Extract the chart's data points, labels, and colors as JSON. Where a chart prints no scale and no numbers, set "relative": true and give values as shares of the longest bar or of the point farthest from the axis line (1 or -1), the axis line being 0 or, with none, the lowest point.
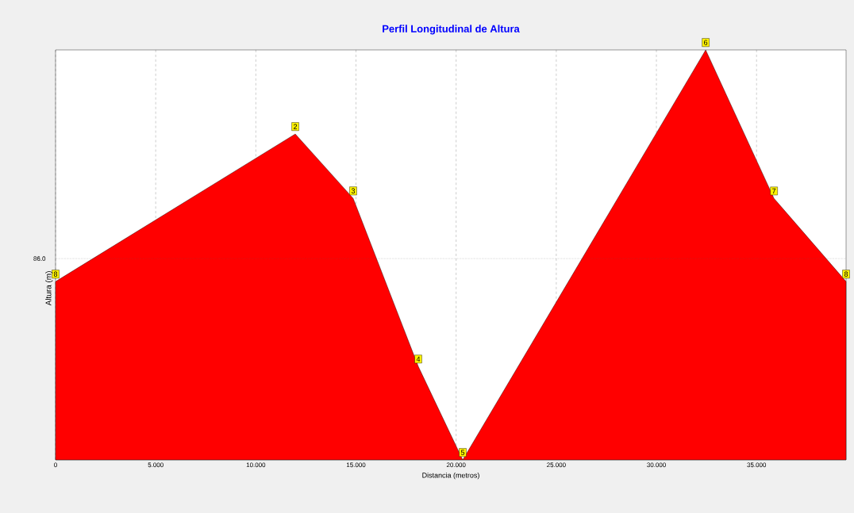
{
  "chart_data": {
    "type": "area",
    "title": "Perfil Longitudinal de Altura",
    "xlabel": "Distancia (metros)",
    "ylabel": "Altura (m)",
    "relative": true,
    "x": [
      0,
      11.97,
      14.86,
      18.11,
      20.33,
      32.46,
      35.87,
      39.47
    ],
    "series": [
      {
        "color": "#ff0000",
        "values": [
          0.435,
          0.795,
          0.638,
          0.228,
          0,
          1,
          0.638,
          0.435
        ]
      }
    ],
    "xlim": [
      0,
      39.47
    ],
    "xticks": [
      {
        "value": 0,
        "label": "0"
      },
      {
        "value": 5,
        "label": "5.000"
      },
      {
        "value": 10,
        "label": "10.000"
      },
      {
        "value": 15,
        "label": "15.000"
      },
      {
        "value": 20,
        "label": "20.000"
      },
      {
        "value": 25,
        "label": "25.000"
      },
      {
        "value": 30,
        "label": "30.000"
      },
      {
        "value": 35,
        "label": "35.000"
      }
    ],
    "grid": "x",
    "ref_lines": [
      {
        "axis": "y",
        "value": 0.491,
        "line_style": "dotted"
      }
    ],
    "annotations": [
      "86.0",
      {
        "text": "8",
        "x": 0,
        "y": 0.435
      },
      {
        "text": "2",
        "x": 11.97,
        "y": 0.795
      },
      {
        "text": "3",
        "x": 14.86,
        "y": 0.638
      },
      {
        "text": "4",
        "x": 18.11,
        "y": 0.228
      },
      {
        "text": "5",
        "x": 20.33,
        "y": 0
      },
      {
        "text": "6",
        "x": 32.46,
        "y": 1
      },
      {
        "text": "7",
        "x": 35.87,
        "y": 0.638
      },
      {
        "text": "8",
        "x": 39.47,
        "y": 0.435
      }
    ]
  }
}
